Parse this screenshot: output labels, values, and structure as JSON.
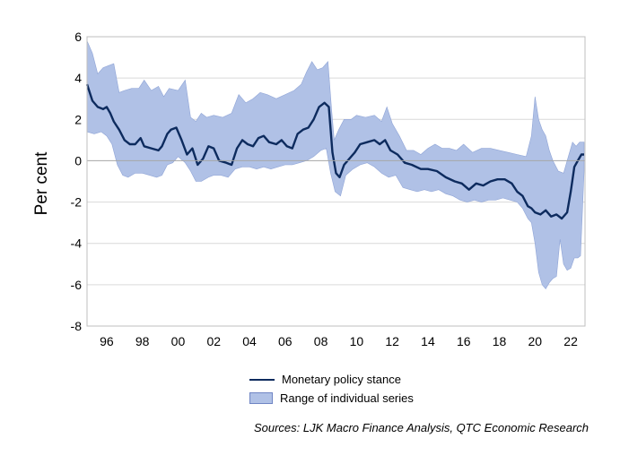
{
  "chart_data": {
    "type": "area",
    "title": "",
    "xlabel": "",
    "ylabel": "Per cent",
    "x_start": 1994.9,
    "x_end": 2022.8,
    "ylim": [
      -8,
      6
    ],
    "yticks": [
      6,
      4,
      2,
      0,
      -2,
      -4,
      -6,
      -8
    ],
    "xticks": [
      {
        "year": 1996,
        "label": "96"
      },
      {
        "year": 1998,
        "label": "98"
      },
      {
        "year": 2000,
        "label": "00"
      },
      {
        "year": 2002,
        "label": "02"
      },
      {
        "year": 2004,
        "label": "04"
      },
      {
        "year": 2006,
        "label": "06"
      },
      {
        "year": 2008,
        "label": "08"
      },
      {
        "year": 2010,
        "label": "10"
      },
      {
        "year": 2012,
        "label": "12"
      },
      {
        "year": 2014,
        "label": "14"
      },
      {
        "year": 2016,
        "label": "16"
      },
      {
        "year": 2018,
        "label": "18"
      },
      {
        "year": 2020,
        "label": "20"
      },
      {
        "year": 2022,
        "label": "22"
      }
    ],
    "grid": true,
    "series": [
      {
        "name": "Monetary policy stance",
        "kind": "line",
        "color": "#0d2b5e",
        "points": [
          [
            1994.9,
            3.7
          ],
          [
            1995.2,
            2.9
          ],
          [
            1995.5,
            2.6
          ],
          [
            1995.8,
            2.5
          ],
          [
            1996.0,
            2.6
          ],
          [
            1996.2,
            2.3
          ],
          [
            1996.4,
            1.9
          ],
          [
            1996.7,
            1.5
          ],
          [
            1997.0,
            1.0
          ],
          [
            1997.3,
            0.8
          ],
          [
            1997.6,
            0.8
          ],
          [
            1997.9,
            1.1
          ],
          [
            1998.1,
            0.7
          ],
          [
            1998.5,
            0.6
          ],
          [
            1998.9,
            0.5
          ],
          [
            1999.1,
            0.7
          ],
          [
            1999.4,
            1.3
          ],
          [
            1999.6,
            1.5
          ],
          [
            1999.9,
            1.6
          ],
          [
            2000.2,
            1.0
          ],
          [
            2000.5,
            0.3
          ],
          [
            2000.8,
            0.6
          ],
          [
            2001.1,
            -0.2
          ],
          [
            2001.4,
            0.1
          ],
          [
            2001.7,
            0.7
          ],
          [
            2002.0,
            0.6
          ],
          [
            2002.3,
            0.0
          ],
          [
            2002.7,
            -0.1
          ],
          [
            2003.0,
            -0.2
          ],
          [
            2003.3,
            0.6
          ],
          [
            2003.6,
            1.0
          ],
          [
            2003.9,
            0.8
          ],
          [
            2004.2,
            0.7
          ],
          [
            2004.5,
            1.1
          ],
          [
            2004.8,
            1.2
          ],
          [
            2005.1,
            0.9
          ],
          [
            2005.5,
            0.8
          ],
          [
            2005.8,
            1.0
          ],
          [
            2006.1,
            0.7
          ],
          [
            2006.4,
            0.6
          ],
          [
            2006.7,
            1.3
          ],
          [
            2007.0,
            1.5
          ],
          [
            2007.3,
            1.6
          ],
          [
            2007.6,
            2.0
          ],
          [
            2007.9,
            2.6
          ],
          [
            2008.2,
            2.8
          ],
          [
            2008.45,
            2.6
          ],
          [
            2008.65,
            0.4
          ],
          [
            2008.85,
            -0.6
          ],
          [
            2009.05,
            -0.8
          ],
          [
            2009.3,
            -0.2
          ],
          [
            2009.6,
            0.1
          ],
          [
            2009.9,
            0.4
          ],
          [
            2010.2,
            0.8
          ],
          [
            2010.6,
            0.9
          ],
          [
            2011.0,
            1.0
          ],
          [
            2011.3,
            0.8
          ],
          [
            2011.6,
            1.0
          ],
          [
            2011.9,
            0.5
          ],
          [
            2012.3,
            0.3
          ],
          [
            2012.7,
            -0.1
          ],
          [
            2013.1,
            -0.2
          ],
          [
            2013.6,
            -0.4
          ],
          [
            2014.0,
            -0.4
          ],
          [
            2014.5,
            -0.5
          ],
          [
            2015.0,
            -0.8
          ],
          [
            2015.5,
            -1.0
          ],
          [
            2015.9,
            -1.1
          ],
          [
            2016.3,
            -1.4
          ],
          [
            2016.7,
            -1.1
          ],
          [
            2017.1,
            -1.2
          ],
          [
            2017.5,
            -1.0
          ],
          [
            2017.9,
            -0.9
          ],
          [
            2018.3,
            -0.9
          ],
          [
            2018.7,
            -1.1
          ],
          [
            2019.0,
            -1.5
          ],
          [
            2019.3,
            -1.7
          ],
          [
            2019.6,
            -2.2
          ],
          [
            2019.8,
            -2.3
          ],
          [
            2020.0,
            -2.5
          ],
          [
            2020.3,
            -2.6
          ],
          [
            2020.6,
            -2.4
          ],
          [
            2020.9,
            -2.7
          ],
          [
            2021.2,
            -2.6
          ],
          [
            2021.5,
            -2.8
          ],
          [
            2021.8,
            -2.5
          ],
          [
            2022.0,
            -1.5
          ],
          [
            2022.2,
            -0.3
          ],
          [
            2022.4,
            0.0
          ],
          [
            2022.6,
            0.3
          ],
          [
            2022.75,
            0.3
          ]
        ]
      },
      {
        "name": "Range of individual series",
        "kind": "band",
        "color": "#b0c1e6",
        "edge_color": "#8fa4d6",
        "upper": [
          [
            1994.9,
            5.8
          ],
          [
            1995.2,
            5.2
          ],
          [
            1995.5,
            4.2
          ],
          [
            1995.8,
            4.5
          ],
          [
            1996.1,
            4.6
          ],
          [
            1996.4,
            4.7
          ],
          [
            1996.7,
            3.3
          ],
          [
            1997.0,
            3.4
          ],
          [
            1997.4,
            3.5
          ],
          [
            1997.8,
            3.5
          ],
          [
            1998.1,
            3.9
          ],
          [
            1998.5,
            3.4
          ],
          [
            1998.9,
            3.6
          ],
          [
            1999.2,
            3.1
          ],
          [
            1999.5,
            3.5
          ],
          [
            2000.0,
            3.4
          ],
          [
            2000.4,
            3.9
          ],
          [
            2000.7,
            2.1
          ],
          [
            2001.0,
            1.9
          ],
          [
            2001.3,
            2.3
          ],
          [
            2001.6,
            2.1
          ],
          [
            2002.0,
            2.2
          ],
          [
            2002.5,
            2.1
          ],
          [
            2003.0,
            2.3
          ],
          [
            2003.4,
            3.2
          ],
          [
            2003.8,
            2.8
          ],
          [
            2004.2,
            3.0
          ],
          [
            2004.6,
            3.3
          ],
          [
            2005.0,
            3.2
          ],
          [
            2005.5,
            3.0
          ],
          [
            2006.0,
            3.2
          ],
          [
            2006.5,
            3.4
          ],
          [
            2006.9,
            3.7
          ],
          [
            2007.2,
            4.3
          ],
          [
            2007.5,
            4.8
          ],
          [
            2007.8,
            4.4
          ],
          [
            2008.1,
            4.5
          ],
          [
            2008.4,
            4.8
          ],
          [
            2008.6,
            2.5
          ],
          [
            2008.75,
            1.0
          ],
          [
            2009.0,
            1.5
          ],
          [
            2009.3,
            2.0
          ],
          [
            2009.7,
            2.0
          ],
          [
            2010.0,
            2.2
          ],
          [
            2010.5,
            2.1
          ],
          [
            2011.0,
            2.2
          ],
          [
            2011.4,
            1.9
          ],
          [
            2011.7,
            2.6
          ],
          [
            2012.0,
            1.8
          ],
          [
            2012.4,
            1.2
          ],
          [
            2012.8,
            0.5
          ],
          [
            2013.2,
            0.5
          ],
          [
            2013.6,
            0.3
          ],
          [
            2014.0,
            0.6
          ],
          [
            2014.4,
            0.8
          ],
          [
            2014.8,
            0.6
          ],
          [
            2015.2,
            0.6
          ],
          [
            2015.6,
            0.5
          ],
          [
            2016.0,
            0.8
          ],
          [
            2016.5,
            0.4
          ],
          [
            2017.0,
            0.6
          ],
          [
            2017.5,
            0.6
          ],
          [
            2018.0,
            0.5
          ],
          [
            2018.5,
            0.4
          ],
          [
            2019.0,
            0.3
          ],
          [
            2019.5,
            0.2
          ],
          [
            2019.8,
            1.2
          ],
          [
            2020.0,
            3.1
          ],
          [
            2020.2,
            2.0
          ],
          [
            2020.4,
            1.5
          ],
          [
            2020.6,
            1.2
          ],
          [
            2020.8,
            0.5
          ],
          [
            2021.0,
            0.0
          ],
          [
            2021.3,
            -0.5
          ],
          [
            2021.6,
            -0.6
          ],
          [
            2021.9,
            0.3
          ],
          [
            2022.1,
            0.9
          ],
          [
            2022.3,
            0.7
          ],
          [
            2022.5,
            0.9
          ],
          [
            2022.75,
            0.9
          ]
        ],
        "lower": [
          [
            1994.9,
            1.4
          ],
          [
            1995.3,
            1.3
          ],
          [
            1995.7,
            1.4
          ],
          [
            1996.0,
            1.2
          ],
          [
            1996.3,
            0.8
          ],
          [
            1996.6,
            -0.2
          ],
          [
            1996.9,
            -0.7
          ],
          [
            1997.2,
            -0.8
          ],
          [
            1997.6,
            -0.6
          ],
          [
            1998.0,
            -0.6
          ],
          [
            1998.4,
            -0.7
          ],
          [
            1998.8,
            -0.8
          ],
          [
            1999.1,
            -0.7
          ],
          [
            1999.4,
            -0.2
          ],
          [
            1999.7,
            -0.1
          ],
          [
            2000.0,
            0.2
          ],
          [
            2000.4,
            -0.1
          ],
          [
            2000.7,
            -0.5
          ],
          [
            2001.0,
            -1.0
          ],
          [
            2001.3,
            -1.0
          ],
          [
            2001.7,
            -0.8
          ],
          [
            2002.0,
            -0.7
          ],
          [
            2002.4,
            -0.7
          ],
          [
            2002.8,
            -0.8
          ],
          [
            2003.2,
            -0.4
          ],
          [
            2003.6,
            -0.3
          ],
          [
            2004.0,
            -0.3
          ],
          [
            2004.4,
            -0.4
          ],
          [
            2004.8,
            -0.3
          ],
          [
            2005.2,
            -0.4
          ],
          [
            2005.6,
            -0.3
          ],
          [
            2006.0,
            -0.2
          ],
          [
            2006.4,
            -0.2
          ],
          [
            2006.8,
            -0.1
          ],
          [
            2007.2,
            0.0
          ],
          [
            2007.6,
            0.2
          ],
          [
            2008.0,
            0.5
          ],
          [
            2008.3,
            0.6
          ],
          [
            2008.55,
            -0.6
          ],
          [
            2008.8,
            -1.5
          ],
          [
            2009.1,
            -1.7
          ],
          [
            2009.4,
            -0.7
          ],
          [
            2009.8,
            -0.4
          ],
          [
            2010.2,
            -0.2
          ],
          [
            2010.6,
            -0.1
          ],
          [
            2011.0,
            -0.3
          ],
          [
            2011.4,
            -0.6
          ],
          [
            2011.8,
            -0.8
          ],
          [
            2012.2,
            -0.7
          ],
          [
            2012.6,
            -1.3
          ],
          [
            2013.0,
            -1.4
          ],
          [
            2013.4,
            -1.5
          ],
          [
            2013.8,
            -1.4
          ],
          [
            2014.2,
            -1.5
          ],
          [
            2014.6,
            -1.4
          ],
          [
            2015.0,
            -1.6
          ],
          [
            2015.4,
            -1.7
          ],
          [
            2015.8,
            -1.9
          ],
          [
            2016.2,
            -2.0
          ],
          [
            2016.6,
            -1.9
          ],
          [
            2017.0,
            -2.0
          ],
          [
            2017.4,
            -1.9
          ],
          [
            2017.8,
            -1.9
          ],
          [
            2018.2,
            -1.8
          ],
          [
            2018.6,
            -1.9
          ],
          [
            2019.0,
            -2.0
          ],
          [
            2019.3,
            -2.3
          ],
          [
            2019.6,
            -2.8
          ],
          [
            2019.8,
            -3.0
          ],
          [
            2020.0,
            -4.0
          ],
          [
            2020.2,
            -5.4
          ],
          [
            2020.4,
            -6.0
          ],
          [
            2020.6,
            -6.2
          ],
          [
            2020.8,
            -5.9
          ],
          [
            2021.0,
            -5.7
          ],
          [
            2021.2,
            -5.6
          ],
          [
            2021.4,
            -3.8
          ],
          [
            2021.6,
            -5.0
          ],
          [
            2021.8,
            -5.3
          ],
          [
            2022.0,
            -5.2
          ],
          [
            2022.2,
            -4.7
          ],
          [
            2022.4,
            -4.7
          ],
          [
            2022.55,
            -4.6
          ],
          [
            2022.75,
            -0.5
          ]
        ]
      }
    ]
  },
  "legend": [
    {
      "label": "Monetary policy stance"
    },
    {
      "label": "Range of individual series"
    }
  ],
  "source": "Sources: LJK Macro Finance Analysis, QTC Economic Research"
}
